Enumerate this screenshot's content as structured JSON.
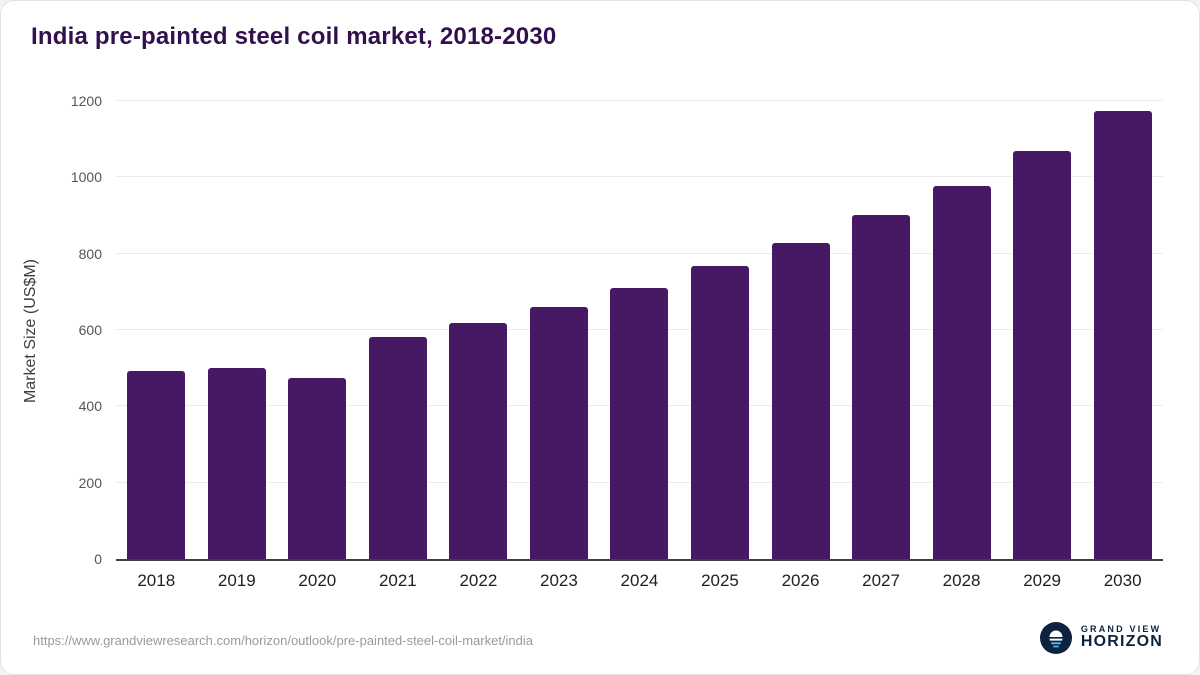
{
  "title": "India pre-painted steel coil market, 2018-2030",
  "colors": {
    "bar": "#471863",
    "title_text": "#33104d",
    "brand_navy": "#0d2240",
    "brand_accent": "#45b7e8"
  },
  "chart_data": {
    "type": "bar",
    "title": "India pre-painted steel coil market, 2018-2030",
    "categories": [
      "2018",
      "2019",
      "2020",
      "2021",
      "2022",
      "2023",
      "2024",
      "2025",
      "2026",
      "2027",
      "2028",
      "2029",
      "2030"
    ],
    "values": [
      493,
      500,
      474,
      581,
      618,
      660,
      710,
      768,
      829,
      901,
      978,
      1068,
      1175
    ],
    "xlabel": "",
    "ylabel": "Market Size (US$M)",
    "ylim": [
      0,
      1200
    ],
    "yticks": [
      0,
      200,
      400,
      600,
      800,
      1000,
      1200
    ],
    "grid": true,
    "legend": "none",
    "bar_color": "#471863"
  },
  "footer": {
    "source_url": "https://www.grandviewresearch.com/horizon/outlook/pre-painted-steel-coil-market/india",
    "brand_top": "GRAND VIEW",
    "brand_bottom": "HORIZON"
  }
}
